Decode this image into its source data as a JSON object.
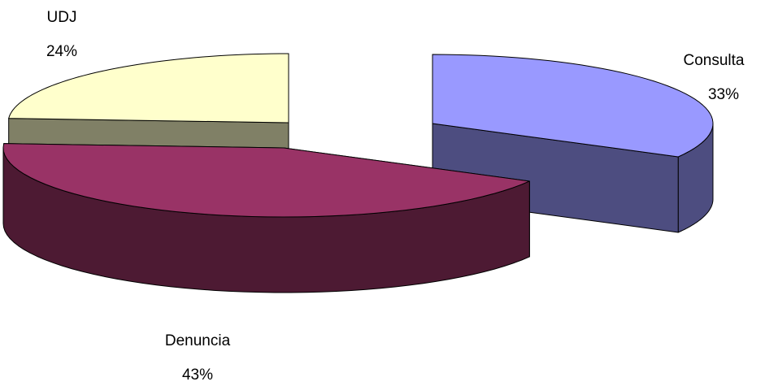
{
  "chart_data": {
    "type": "pie",
    "style": "3d-exploded",
    "title": "",
    "slices": [
      {
        "label": "Consulta",
        "value": 33,
        "display": "33%",
        "top_color": "#9999ff",
        "side_color": "#4d4d80"
      },
      {
        "label": "Denuncia",
        "value": 43,
        "display": "43%",
        "top_color": "#993366",
        "side_color": "#4d1a33"
      },
      {
        "label": "UDJ",
        "value": 24,
        "display": "24%",
        "top_color": "#ffffcc",
        "side_color": "#808066"
      }
    ],
    "legend": "none",
    "data_labels": "category-and-percent"
  }
}
